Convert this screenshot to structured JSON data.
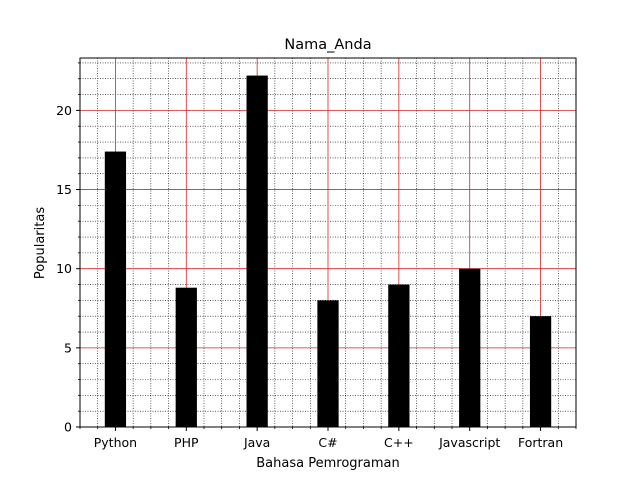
{
  "chart_data": {
    "type": "bar",
    "title": "Nama_Anda",
    "xlabel": "Bahasa Pemrograman",
    "ylabel": "Popularitas",
    "categories": [
      "Python",
      "PHP",
      "Java",
      "C#",
      "C++",
      "Javascript",
      "Fortran"
    ],
    "values": [
      17.4,
      8.8,
      22.2,
      8.0,
      9.0,
      10.0,
      7.0
    ],
    "ylim": [
      0,
      23.31
    ],
    "yticks": [
      0,
      5,
      10,
      15,
      20
    ],
    "yminor_step": 1,
    "xminor_per_major": 4,
    "bar_color": "#000000",
    "major_grid_color": "#d62728",
    "minor_grid_color": "#000000",
    "grid": true,
    "legend": "none"
  }
}
